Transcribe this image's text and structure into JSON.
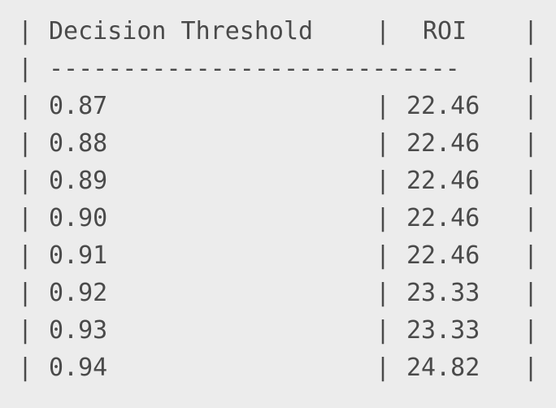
{
  "table": {
    "separator": "|",
    "headers": {
      "threshold": "Decision Threshold",
      "roi": "ROI"
    },
    "divider": "----------------------------",
    "rows": [
      {
        "threshold": "0.87",
        "roi": "22.46"
      },
      {
        "threshold": "0.88",
        "roi": "22.46"
      },
      {
        "threshold": "0.89",
        "roi": "22.46"
      },
      {
        "threshold": "0.90",
        "roi": "22.46"
      },
      {
        "threshold": "0.91",
        "roi": "22.46"
      },
      {
        "threshold": "0.92",
        "roi": "23.33"
      },
      {
        "threshold": "0.93",
        "roi": "23.33"
      },
      {
        "threshold": "0.94",
        "roi": "24.82"
      }
    ]
  }
}
